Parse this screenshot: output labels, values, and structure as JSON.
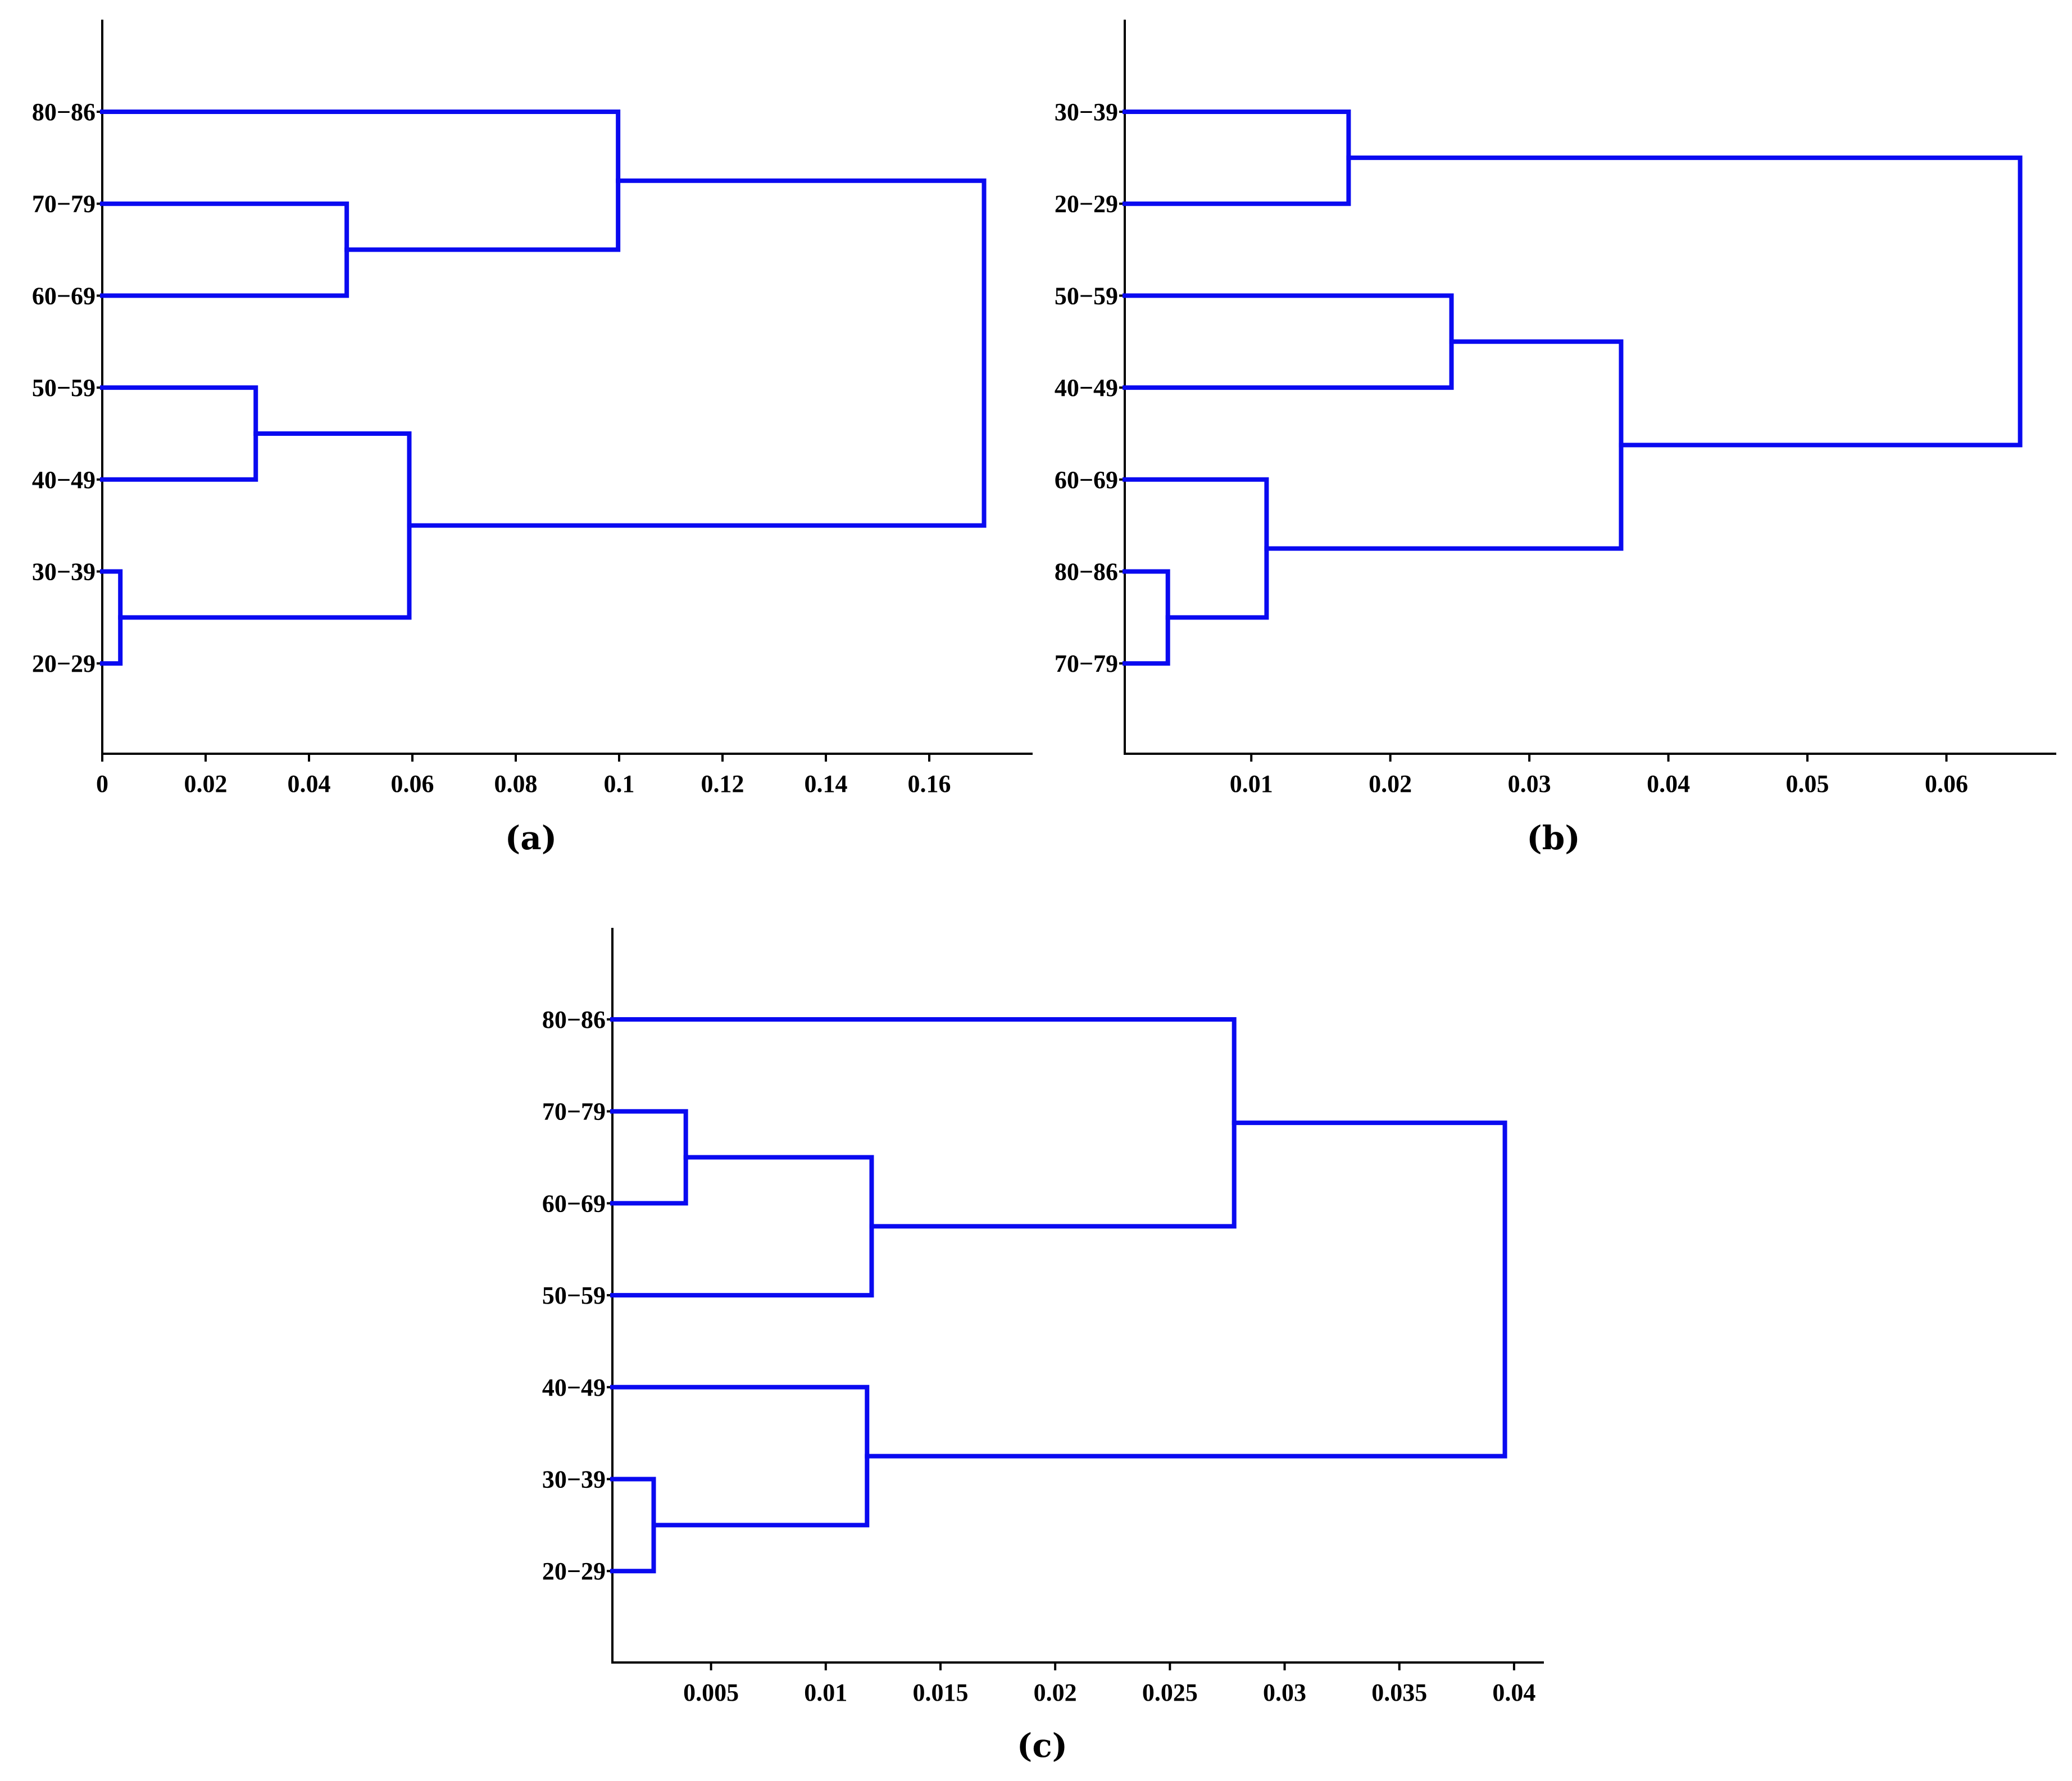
{
  "chart_data": [
    {
      "type": "dendrogram",
      "panel_label": "(a)",
      "orientation": "horizontal",
      "xlim": [
        0,
        0.18
      ],
      "xticks": [
        0,
        0.02,
        0.04,
        0.06,
        0.08,
        0.1,
        0.12,
        0.14,
        0.16
      ],
      "xtick_labels": [
        "0",
        "0.02",
        "0.04",
        "0.06",
        "0.08",
        "0.1",
        "0.12",
        "0.14",
        "0.16"
      ],
      "leaves": [
        "80−86",
        "70−79",
        "60−69",
        "50−59",
        "40−49",
        "30−39",
        "20−29"
      ],
      "merges": [
        {
          "left": "leaf:5",
          "right": "leaf:6",
          "height": 0.0035
        },
        {
          "left": "leaf:3",
          "right": "leaf:4",
          "height": 0.0297
        },
        {
          "left": "leaf:1",
          "right": "leaf:2",
          "height": 0.0473
        },
        {
          "left": "merge:1",
          "right": "merge:0",
          "height": 0.0594
        },
        {
          "left": "leaf:0",
          "right": "merge:2",
          "height": 0.0998
        },
        {
          "left": "merge:4",
          "right": "merge:3",
          "height": 0.1706
        }
      ]
    },
    {
      "type": "dendrogram",
      "panel_label": "(b)",
      "orientation": "horizontal",
      "xlim": [
        0.0009,
        0.0679
      ],
      "xticks": [
        0.01,
        0.02,
        0.03,
        0.04,
        0.05,
        0.06
      ],
      "xtick_labels": [
        "0.01",
        "0.02",
        "0.03",
        "0.04",
        "0.05",
        "0.06"
      ],
      "leaves": [
        "30−39",
        "20−29",
        "50−59",
        "40−49",
        "60−69",
        "80−86",
        "70−79"
      ],
      "merges": [
        {
          "left": "leaf:5",
          "right": "leaf:6",
          "height": 0.004
        },
        {
          "left": "leaf:4",
          "right": "merge:0",
          "height": 0.0111
        },
        {
          "left": "leaf:0",
          "right": "leaf:1",
          "height": 0.017
        },
        {
          "left": "leaf:2",
          "right": "leaf:3",
          "height": 0.0244
        },
        {
          "left": "merge:3",
          "right": "merge:1",
          "height": 0.0366
        },
        {
          "left": "merge:2",
          "right": "merge:4",
          "height": 0.0653
        }
      ]
    },
    {
      "type": "dendrogram",
      "panel_label": "(c)",
      "orientation": "horizontal",
      "xlim": [
        0.0007,
        0.0413
      ],
      "xticks": [
        0.005,
        0.01,
        0.015,
        0.02,
        0.025,
        0.03,
        0.035,
        0.04
      ],
      "xtick_labels": [
        "0.005",
        "0.01",
        "0.015",
        "0.02",
        "0.025",
        "0.03",
        "0.035",
        "0.04"
      ],
      "leaves": [
        "80−86",
        "70−79",
        "60−69",
        "50−59",
        "40−49",
        "30−39",
        "20−29"
      ],
      "merges": [
        {
          "left": "leaf:5",
          "right": "leaf:6",
          "height": 0.0025
        },
        {
          "left": "leaf:1",
          "right": "leaf:2",
          "height": 0.0039
        },
        {
          "left": "leaf:4",
          "right": "merge:0",
          "height": 0.0118
        },
        {
          "left": "merge:1",
          "right": "leaf:3",
          "height": 0.012
        },
        {
          "left": "leaf:0",
          "right": "merge:3",
          "height": 0.0278
        },
        {
          "left": "merge:4",
          "right": "merge:2",
          "height": 0.0396
        }
      ]
    }
  ],
  "colors": {
    "link": "#0a0af0",
    "axis": "#000000",
    "text": "#000000",
    "background": "#ffffff"
  }
}
